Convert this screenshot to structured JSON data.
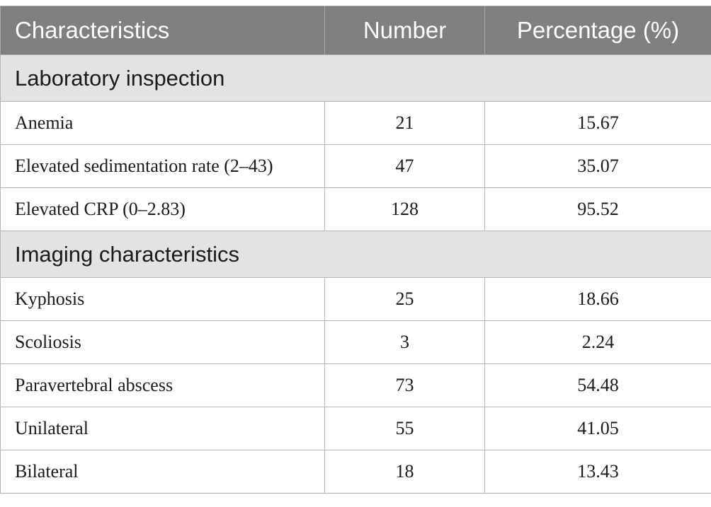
{
  "table": {
    "headers": {
      "characteristics": "Characteristics",
      "number": "Number",
      "percentage": "Percentage (%)"
    },
    "sections": [
      {
        "title": "Laboratory inspection",
        "rows": [
          {
            "label": "Anemia",
            "number": "21",
            "percentage": "15.67"
          },
          {
            "label": "Elevated sedimentation rate (2–43)",
            "number": "47",
            "percentage": "35.07"
          },
          {
            "label": "Elevated CRP (0–2.83)",
            "number": "128",
            "percentage": "95.52"
          }
        ]
      },
      {
        "title": "Imaging characteristics",
        "rows": [
          {
            "label": "Kyphosis",
            "number": "25",
            "percentage": "18.66"
          },
          {
            "label": "Scoliosis",
            "number": "3",
            "percentage": "2.24"
          },
          {
            "label": "Paravertebral abscess",
            "number": "73",
            "percentage": "54.48"
          },
          {
            "label": "Unilateral",
            "number": "55",
            "percentage": "41.05"
          },
          {
            "label": "Bilateral",
            "number": "18",
            "percentage": "13.43"
          }
        ]
      }
    ]
  }
}
